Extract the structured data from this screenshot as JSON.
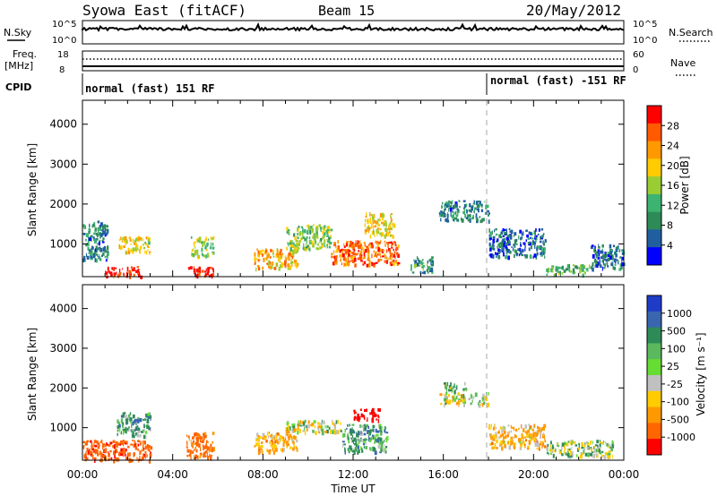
{
  "header": {
    "title": "Syowa East (fitACF)",
    "beam": "Beam 15",
    "date": "20/May/2012"
  },
  "top_panel": {
    "left_label": "N.Sky",
    "right_label": "N.Search",
    "ticks_left": [
      "10^5",
      "10^0"
    ],
    "ticks_right": [
      "10^5",
      "10^0"
    ]
  },
  "freq_panel": {
    "left_label_1": "Freq.",
    "left_label_2": "[MHz]",
    "right_label": "Nave",
    "ticks_left": [
      "18",
      "8"
    ],
    "ticks_right": [
      "60",
      "0"
    ]
  },
  "cpid_panel": {
    "label": "CPID",
    "segments": [
      {
        "text": "normal (fast) 151 RF",
        "start_hour": 0
      },
      {
        "text": "normal (fast) -151 RF",
        "start_hour": 18
      }
    ]
  },
  "axes": {
    "ylabel": "Slant Range [km]",
    "xlabel": "Time UT",
    "y_ticks": [
      "4000",
      "3000",
      "2000",
      "1000"
    ],
    "x_ticks": [
      "00:00",
      "04:00",
      "08:00",
      "12:00",
      "16:00",
      "20:00",
      "00:00"
    ]
  },
  "power_colorbar": {
    "label": "Power [dB]",
    "ticks": [
      "28",
      "24",
      "20",
      "16",
      "12",
      "8",
      "4"
    ],
    "colors": [
      "#ff0000",
      "#ff5a00",
      "#ff9900",
      "#ffcc00",
      "#9acd32",
      "#3cb371",
      "#2e8b57",
      "#1f5fa0",
      "#0000ff"
    ]
  },
  "velocity_colorbar": {
    "label": "Velocity [m s⁻¹]",
    "ticks": [
      "1000",
      "500",
      "100",
      "25",
      "-25",
      "-100",
      "-500",
      "-1000"
    ],
    "colors": [
      "#1e3cc8",
      "#3a66b0",
      "#2e8b57",
      "#5cb85c",
      "#66dd33",
      "#c0c0c0",
      "#ffcc00",
      "#ff9900",
      "#ff6600",
      "#ff0000"
    ]
  },
  "chart_data": [
    {
      "type": "heatmap",
      "title": "Power",
      "xlabel": "Time UT",
      "ylabel": "Slant Range [km]",
      "xlim": [
        0,
        24
      ],
      "ylim": [
        180,
        4600
      ],
      "colorbar_label": "Power [dB]",
      "colorbar_range": [
        0,
        30
      ],
      "regions": [
        {
          "x": [
            0.0,
            1.1
          ],
          "y": [
            600,
            1600
          ],
          "value": 8
        },
        {
          "x": [
            1.0,
            2.6
          ],
          "y": [
            200,
            450
          ],
          "value": 28
        },
        {
          "x": [
            1.6,
            3.0
          ],
          "y": [
            800,
            1200
          ],
          "value": 18
        },
        {
          "x": [
            4.6,
            5.8
          ],
          "y": [
            200,
            450
          ],
          "value": 27
        },
        {
          "x": [
            4.8,
            5.8
          ],
          "y": [
            700,
            1200
          ],
          "value": 15
        },
        {
          "x": [
            7.6,
            9.5
          ],
          "y": [
            400,
            900
          ],
          "value": 20
        },
        {
          "x": [
            9.0,
            11.0
          ],
          "y": [
            900,
            1500
          ],
          "value": 14
        },
        {
          "x": [
            11.0,
            14.0
          ],
          "y": [
            500,
            1100
          ],
          "value": 24
        },
        {
          "x": [
            12.5,
            13.8
          ],
          "y": [
            1200,
            1800
          ],
          "value": 18
        },
        {
          "x": [
            14.5,
            15.5
          ],
          "y": [
            300,
            700
          ],
          "value": 10
        },
        {
          "x": [
            15.8,
            18.0
          ],
          "y": [
            1600,
            2100
          ],
          "value": 8
        },
        {
          "x": [
            18.0,
            20.5
          ],
          "y": [
            700,
            1400
          ],
          "value": 6
        },
        {
          "x": [
            20.5,
            22.5
          ],
          "y": [
            250,
            500
          ],
          "value": 12
        },
        {
          "x": [
            22.5,
            24.0
          ],
          "y": [
            400,
            1000
          ],
          "value": 6
        }
      ]
    },
    {
      "type": "heatmap",
      "title": "Velocity",
      "xlabel": "Time UT",
      "ylabel": "Slant Range [km]",
      "xlim": [
        0,
        24
      ],
      "ylim": [
        180,
        4600
      ],
      "colorbar_label": "Velocity [m s⁻¹]",
      "colorbar_range": [
        -1000,
        1000
      ],
      "regions": [
        {
          "x": [
            0.0,
            3.0
          ],
          "y": [
            200,
            700
          ],
          "value": -400
        },
        {
          "x": [
            1.5,
            3.0
          ],
          "y": [
            800,
            1400
          ],
          "value": 150
        },
        {
          "x": [
            4.6,
            5.8
          ],
          "y": [
            250,
            900
          ],
          "value": -350
        },
        {
          "x": [
            7.6,
            9.5
          ],
          "y": [
            400,
            900
          ],
          "value": -120
        },
        {
          "x": [
            9.0,
            11.5
          ],
          "y": [
            900,
            1200
          ],
          "value": 0
        },
        {
          "x": [
            11.5,
            13.5
          ],
          "y": [
            400,
            1100
          ],
          "value": 150
        },
        {
          "x": [
            12.0,
            13.2
          ],
          "y": [
            1200,
            1500
          ],
          "value": -900
        },
        {
          "x": [
            15.8,
            18.0
          ],
          "y": [
            1600,
            1900
          ],
          "value": 0
        },
        {
          "x": [
            16.0,
            17.0
          ],
          "y": [
            1950,
            2150
          ],
          "value": 80
        },
        {
          "x": [
            18.0,
            20.5
          ],
          "y": [
            500,
            1100
          ],
          "value": -120
        },
        {
          "x": [
            20.5,
            23.5
          ],
          "y": [
            300,
            700
          ],
          "value": 60
        }
      ]
    }
  ]
}
